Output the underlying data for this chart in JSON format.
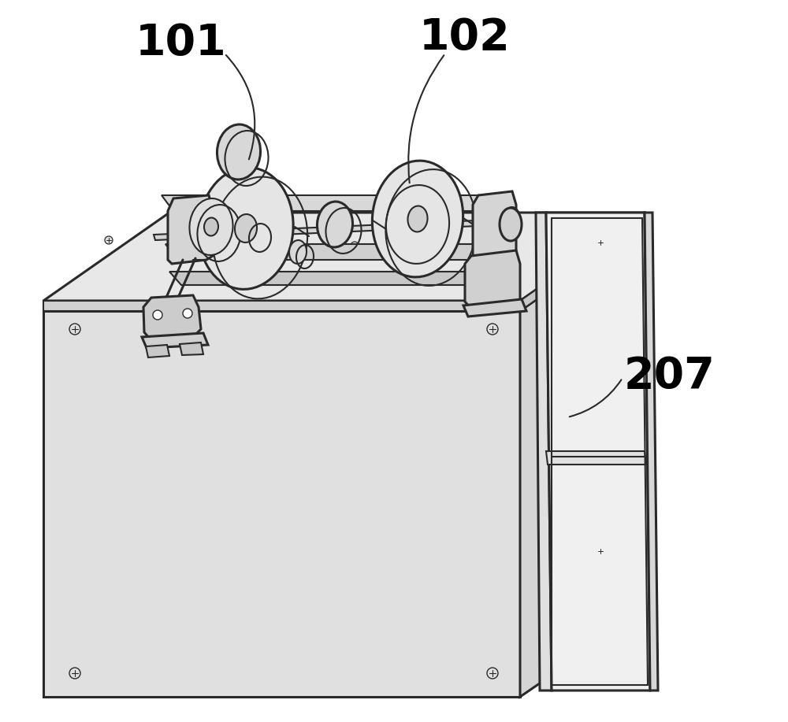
{
  "background_color": "#ffffff",
  "line_color": "#2a2a2a",
  "label_101": "101",
  "label_102": "102",
  "label_207": "207",
  "label_fontsize": 40,
  "figsize": [
    10.0,
    9.17
  ],
  "dpi": 100
}
